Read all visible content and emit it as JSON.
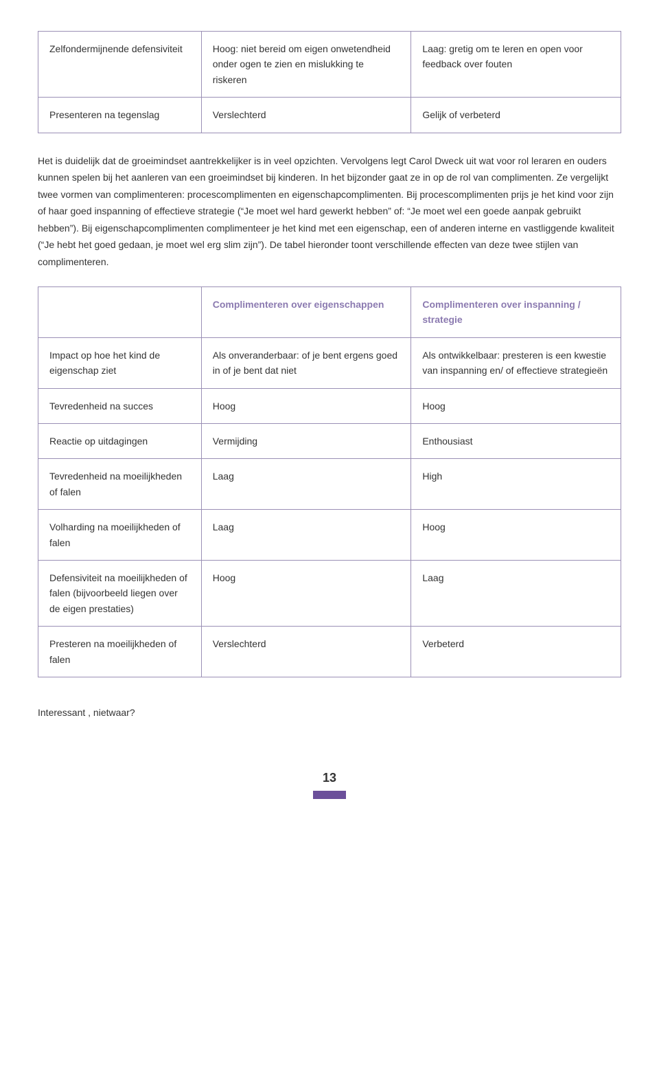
{
  "table1": {
    "border_color": "#9a8fb5",
    "rows": [
      {
        "c0": "Zelfondermijnende defensiviteit",
        "c1": "Hoog: niet bereid om eigen onwetendheid onder ogen te zien en mislukking te riskeren",
        "c2": "Laag: gretig om te leren en open voor feedback over fouten"
      },
      {
        "c0": "Presenteren na tegenslag",
        "c1": "Verslechterd",
        "c2": "Gelijk of verbeterd"
      }
    ]
  },
  "paragraph": "Het is duidelijk dat de groeimindset aantrekkelijker is in veel opzichten. Vervolgens legt Carol Dweck uit wat voor rol leraren en ouders kunnen spelen bij het aanleren van een groeimindset bij kinderen. In het bijzonder gaat ze in op de rol van complimenten. Ze vergelijkt twee vormen van complimenteren: procescomplimenten en eigenschapcomplimenten. Bij procescomplimenten prijs je het kind voor zijn of haar goed inspanning of effectieve strategie (“Je moet wel hard gewerkt hebben” of: “Je moet wel een goede aanpak gebruikt hebben”). Bij eigenschapcomplimenten complimenteer je het kind met een eigenschap, een of anderen interne en vastliggende kwaliteit (“Je hebt het goed gedaan, je moet wel erg slim zijn”). De tabel hieronder toont verschillende effecten van deze twee stijlen van complimenteren.",
  "table2": {
    "border_color": "#9a8fb5",
    "header_color": "#8b7ab0",
    "headers": {
      "h0": "",
      "h1": "Complimenteren over eigenschappen",
      "h2": "Complimenteren over inspanning / strategie"
    },
    "rows": [
      {
        "c0": "Impact op hoe het kind de eigenschap ziet",
        "c1": "Als onveranderbaar: of je bent ergens goed in of je bent dat niet",
        "c2": "Als ontwikkelbaar: presteren is een kwestie van inspanning en/ of effectieve strategieën"
      },
      {
        "c0": "Tevredenheid na succes",
        "c1": "Hoog",
        "c2": "Hoog"
      },
      {
        "c0": "Reactie op uitdagingen",
        "c1": "Vermijding",
        "c2": "Enthousiast"
      },
      {
        "c0": "Tevredenheid na moeilijkheden of falen",
        "c1": "Laag",
        "c2": "High"
      },
      {
        "c0": "Volharding na moeilijkheden of falen",
        "c1": "Laag",
        "c2": "Hoog"
      },
      {
        "c0": "Defensiviteit na moeilijkheden of falen (bijvoorbeeld liegen over de eigen prestaties)",
        "c1": "Hoog",
        "c2": "Laag"
      },
      {
        "c0": "Presteren na moeilijkheden of falen",
        "c1": "Verslechterd",
        "c2": "Verbeterd"
      }
    ]
  },
  "closing": "Interessant , nietwaar?",
  "page_number": "13",
  "accent_bar_color": "#6b4f9a",
  "text_color": "#333333",
  "background_color": "#ffffff"
}
